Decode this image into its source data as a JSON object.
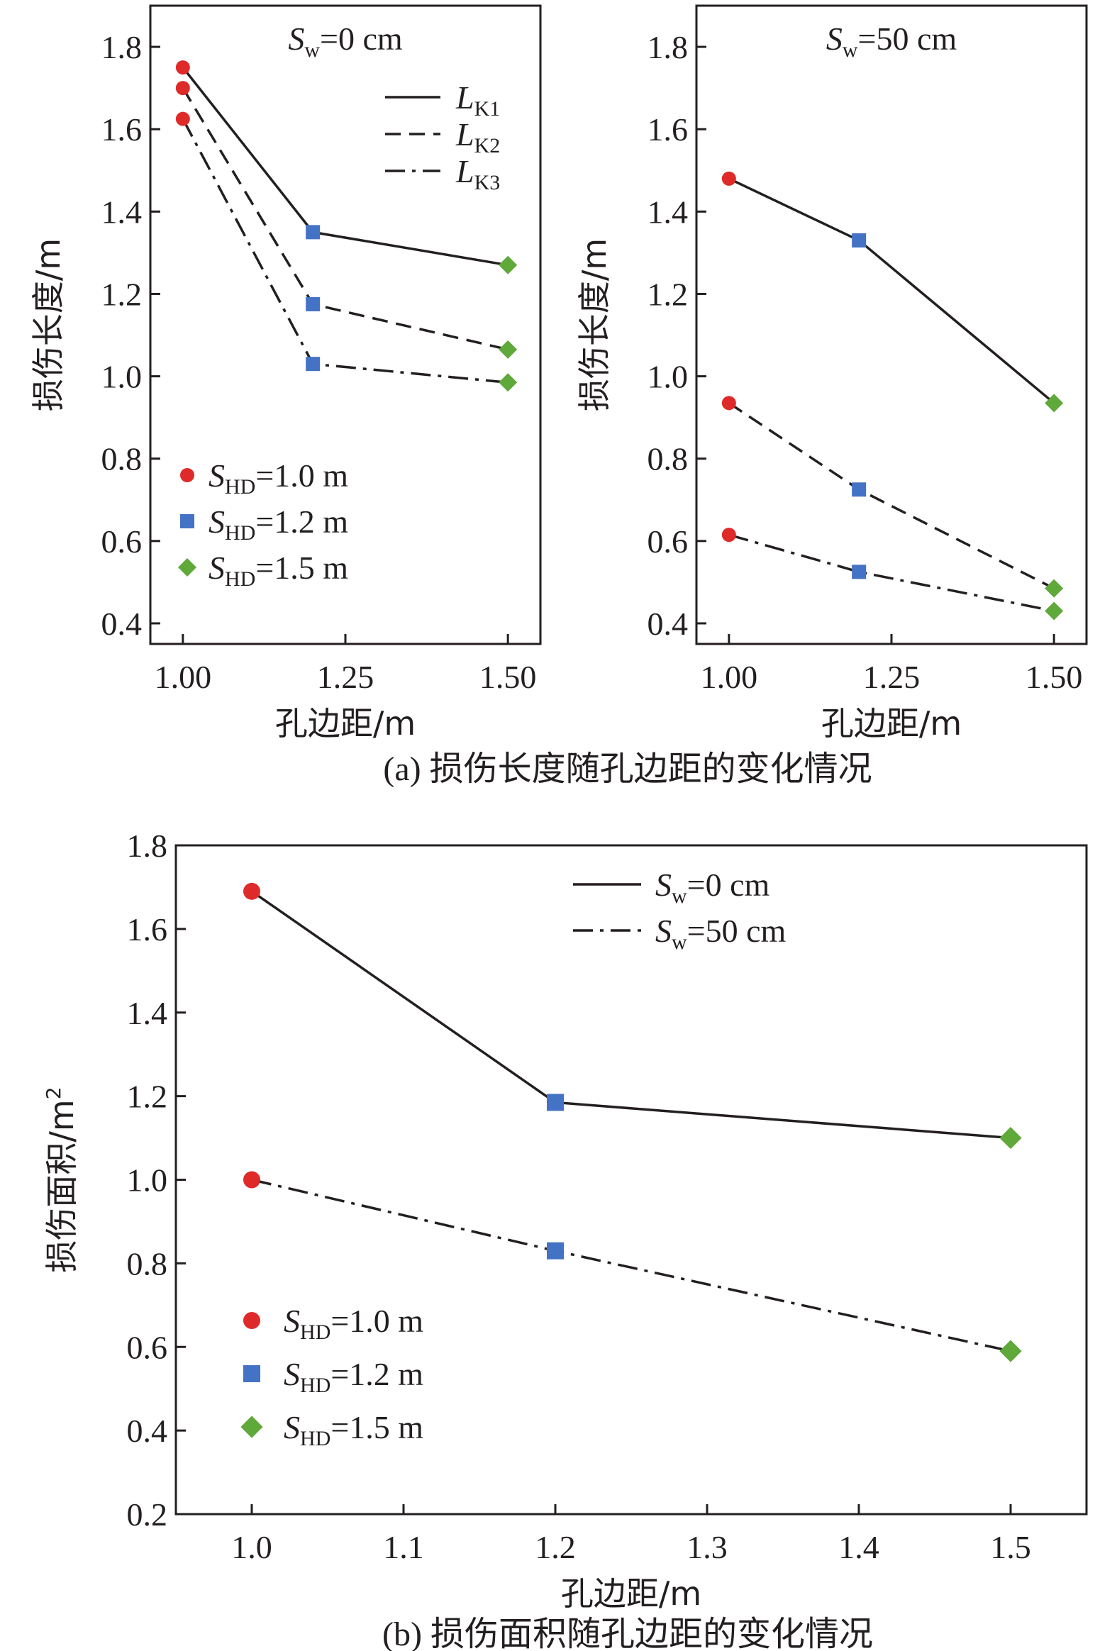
{
  "colors": {
    "axis": "#231f20",
    "marker_1_0": "#de2b2a",
    "marker_1_2": "#4472c4",
    "marker_1_5": "#5fa83a"
  },
  "captions": {
    "a": "(a) 损伤长度随孔边距的变化情况",
    "b": "(b) 损伤面积随孔边距的变化情况"
  },
  "chart_data": [
    {
      "id": "a-left",
      "type": "line",
      "title": {
        "var": "S",
        "sub": "w",
        "rest": "=0 cm"
      },
      "xlabel": "孔边距/m",
      "ylabel": "损伤长度/m",
      "xlim": [
        0.95,
        1.55
      ],
      "ylim": [
        0.35,
        1.9
      ],
      "xticks": [
        1.0,
        1.25,
        1.5
      ],
      "xtick_labels": [
        "1.00",
        "1.25",
        "1.50"
      ],
      "yticks": [
        0.4,
        0.6,
        0.8,
        1.0,
        1.2,
        1.4,
        1.6,
        1.8
      ],
      "ytick_labels": [
        "0.4",
        "0.6",
        "0.8",
        "1.0",
        "1.2",
        "1.4",
        "1.6",
        "1.8"
      ],
      "x": [
        1.0,
        1.2,
        1.5
      ],
      "series": [
        {
          "name": "LK1",
          "dash": "solid",
          "values": [
            1.75,
            1.35,
            1.27
          ]
        },
        {
          "name": "LK2",
          "dash": "dashed",
          "values": [
            1.7,
            1.175,
            1.065
          ]
        },
        {
          "name": "LK3",
          "dash": "dashdot",
          "values": [
            1.625,
            1.03,
            0.985
          ]
        }
      ],
      "line_legend": {
        "position": "top-right",
        "entries": [
          {
            "var": "L",
            "sub": "K1",
            "dash": "solid"
          },
          {
            "var": "L",
            "sub": "K2",
            "dash": "dashed"
          },
          {
            "var": "L",
            "sub": "K3",
            "dash": "dashdot"
          }
        ]
      },
      "marker_legend": {
        "position": "lower-left",
        "entries": [
          {
            "var": "S",
            "sub": "HD",
            "rest": "=1.0 m",
            "marker": "circle",
            "color": "#de2b2a"
          },
          {
            "var": "S",
            "sub": "HD",
            "rest": "=1.2 m",
            "marker": "square",
            "color": "#4472c4"
          },
          {
            "var": "S",
            "sub": "HD",
            "rest": "=1.5 m",
            "marker": "diamond",
            "color": "#5fa83a"
          }
        ]
      }
    },
    {
      "id": "a-right",
      "type": "line",
      "title": {
        "var": "S",
        "sub": "w",
        "rest": "=50 cm"
      },
      "xlabel": "孔边距/m",
      "ylabel": "损伤长度/m",
      "xlim": [
        0.95,
        1.55
      ],
      "ylim": [
        0.35,
        1.9
      ],
      "xticks": [
        1.0,
        1.25,
        1.5
      ],
      "xtick_labels": [
        "1.00",
        "1.25",
        "1.50"
      ],
      "yticks": [
        0.4,
        0.6,
        0.8,
        1.0,
        1.2,
        1.4,
        1.6,
        1.8
      ],
      "ytick_labels": [
        "0.4",
        "0.6",
        "0.8",
        "1.0",
        "1.2",
        "1.4",
        "1.6",
        "1.8"
      ],
      "x": [
        1.0,
        1.2,
        1.5
      ],
      "series": [
        {
          "name": "LK1",
          "dash": "solid",
          "values": [
            1.48,
            1.33,
            0.935
          ]
        },
        {
          "name": "LK2",
          "dash": "dashed",
          "values": [
            0.935,
            0.725,
            0.485
          ]
        },
        {
          "name": "LK3",
          "dash": "dashdot",
          "values": [
            0.615,
            0.525,
            0.43
          ]
        }
      ]
    },
    {
      "id": "b",
      "type": "line",
      "xlabel": "孔边距/m",
      "ylabel": "损伤面积/m",
      "ylabel_sup": "2",
      "xlim": [
        0.95,
        1.55
      ],
      "ylim": [
        0.2,
        1.8
      ],
      "xticks": [
        1.0,
        1.1,
        1.2,
        1.3,
        1.4,
        1.5
      ],
      "xtick_labels": [
        "1.0",
        "1.1",
        "1.2",
        "1.3",
        "1.4",
        "1.5"
      ],
      "yticks": [
        0.2,
        0.4,
        0.6,
        0.8,
        1.0,
        1.2,
        1.4,
        1.6,
        1.8
      ],
      "ytick_labels": [
        "0.2",
        "0.4",
        "0.6",
        "0.8",
        "1.0",
        "1.2",
        "1.4",
        "1.6",
        "1.8"
      ],
      "x": [
        1.0,
        1.2,
        1.5
      ],
      "series": [
        {
          "name": "Sw=0 cm",
          "dash": "solid",
          "values": [
            1.69,
            1.185,
            1.1
          ]
        },
        {
          "name": "Sw=50 cm",
          "dash": "dashdot",
          "values": [
            1.0,
            0.83,
            0.59
          ]
        }
      ],
      "line_legend": {
        "position": "top-center",
        "entries": [
          {
            "var": "S",
            "sub": "w",
            "rest": "=0 cm",
            "dash": "solid"
          },
          {
            "var": "S",
            "sub": "w",
            "rest": "=50 cm",
            "dash": "dashdot"
          }
        ]
      },
      "marker_legend": {
        "position": "lower-left",
        "entries": [
          {
            "var": "S",
            "sub": "HD",
            "rest": "=1.0 m",
            "marker": "circle",
            "color": "#de2b2a"
          },
          {
            "var": "S",
            "sub": "HD",
            "rest": "=1.2 m",
            "marker": "square",
            "color": "#4472c4"
          },
          {
            "var": "S",
            "sub": "HD",
            "rest": "=1.5 m",
            "marker": "diamond",
            "color": "#5fa83a"
          }
        ]
      }
    }
  ]
}
